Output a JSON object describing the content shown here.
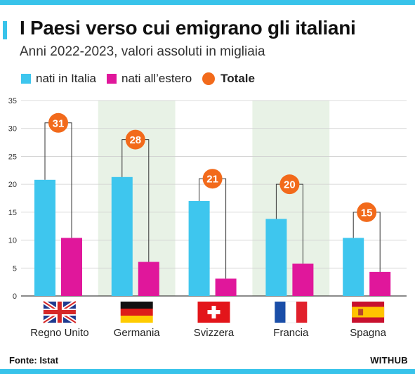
{
  "header": {
    "title": "I Paesi verso cui emigrano gli italiani",
    "subtitle": "Anni 2022-2023, valori assoluti in migliaia"
  },
  "legend": {
    "items": [
      {
        "label": "nati in Italia",
        "color": "#3ec6ee",
        "shape": "square"
      },
      {
        "label": "nati all’estero",
        "color": "#e0179b",
        "shape": "square"
      },
      {
        "label": "Totale",
        "color": "#f26a1b",
        "shape": "circle"
      }
    ]
  },
  "footer": {
    "source": "Fonte: Istat",
    "brand": "WITHUB"
  },
  "colors": {
    "italia": "#3ec6ee",
    "estero": "#e0179b",
    "totale": "#f26a1b",
    "band": "#e8f2e6",
    "grid": "#cfcfcf"
  },
  "chart_data": {
    "type": "bar",
    "categories": [
      "Regno Unito",
      "Germania",
      "Svizzera",
      "Francia",
      "Spagna"
    ],
    "flags": [
      "uk-flag-icon",
      "germany-flag-icon",
      "switzerland-flag-icon",
      "france-flag-icon",
      "spain-flag-icon"
    ],
    "series": [
      {
        "name": "nati in Italia",
        "values": [
          20.8,
          21.3,
          17.0,
          13.8,
          10.4
        ]
      },
      {
        "name": "nati all’estero",
        "values": [
          10.4,
          6.1,
          3.1,
          5.8,
          4.3
        ]
      }
    ],
    "totals": [
      31,
      28,
      21,
      20,
      15
    ],
    "title": "I Paesi verso cui emigrano gli italiani",
    "subtitle": "Anni 2022-2023, valori assoluti in migliaia",
    "xlabel": "",
    "ylabel": "",
    "ylim": [
      0,
      35
    ],
    "yticks": [
      0,
      5,
      10,
      15,
      20,
      25,
      30,
      35
    ],
    "grid": true,
    "legend_position": "top-left"
  }
}
